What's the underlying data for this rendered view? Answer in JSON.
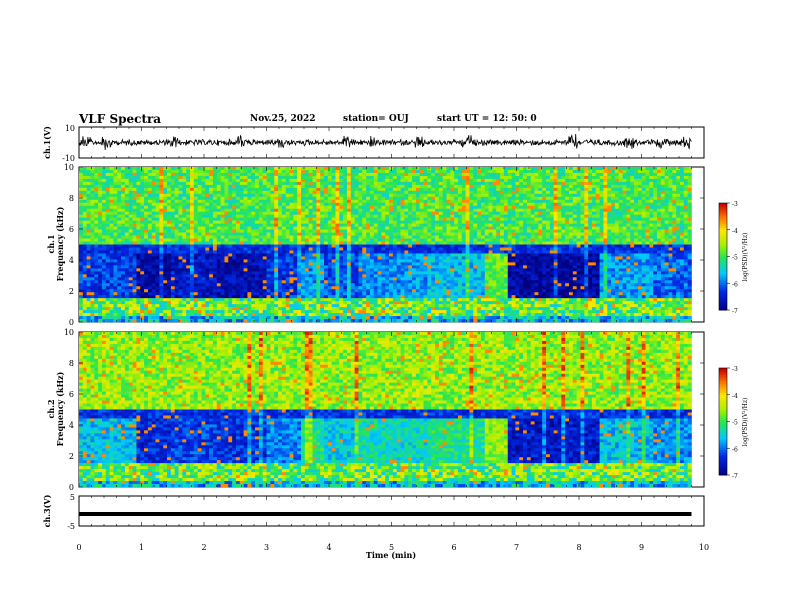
{
  "header": {
    "title": "VLF Spectra",
    "date": "Nov.25, 2022",
    "station": "station= OUJ",
    "start": "start  UT =   12: 50: 0"
  },
  "chart_data": [
    {
      "type": "line",
      "title": "",
      "ylabel": "ch.1(V)",
      "ylim": [
        -10,
        10
      ],
      "yticks": [
        "10",
        "-10"
      ],
      "x_units": "min",
      "xlim": [
        0,
        10
      ],
      "note": "dense waveform trace",
      "series": [
        {
          "color": "#000000"
        }
      ]
    },
    {
      "type": "heatmap",
      "ylabel_lines": [
        "ch.1",
        "Frequency  (kHz)"
      ],
      "ylim": [
        0,
        10
      ],
      "yticks": [
        "0",
        "2",
        "4",
        "6",
        "8",
        "10"
      ],
      "xlim": [
        0,
        9.8
      ],
      "colorbar": {
        "label": "log(PSD)(V²/Hz)",
        "range": [
          -7,
          -3
        ],
        "ticks": [
          "-3",
          "-4",
          "-5",
          "-6",
          "-7"
        ]
      },
      "segments_min": [
        0,
        0.9,
        1.5,
        2.2,
        3.0,
        3.55,
        3.9,
        4.5,
        5.0,
        5.6,
        6.5,
        6.85,
        8.3,
        9.2,
        9.8
      ]
    },
    {
      "type": "heatmap",
      "ylabel_lines": [
        "ch.2",
        "Frequency  (kHz)"
      ],
      "ylim": [
        0,
        10
      ],
      "yticks": [
        "0",
        "2",
        "4",
        "6",
        "8",
        "10"
      ],
      "xlim": [
        0,
        9.8
      ],
      "colorbar": {
        "label": "log(PSD)(V²/Hz)",
        "range": [
          -7,
          -3
        ],
        "ticks": [
          "-3",
          "-4",
          "-5",
          "-6",
          "-7"
        ]
      },
      "segments_min": [
        0,
        0.9,
        1.5,
        2.2,
        3.0,
        3.55,
        3.9,
        4.5,
        5.0,
        5.6,
        6.5,
        6.85,
        8.3,
        9.2,
        9.8
      ]
    },
    {
      "type": "line",
      "ylabel": "ch.3(V)",
      "ylim": [
        -5,
        5
      ],
      "yticks": [
        "5",
        "-5"
      ],
      "xlim": [
        0,
        10
      ],
      "note": "near-constant trace",
      "series": [
        {
          "values_approx": -1.0
        }
      ]
    }
  ],
  "xaxis": {
    "label": "Time  (min)",
    "ticks": [
      "0",
      "1",
      "2",
      "3",
      "4",
      "5",
      "6",
      "7",
      "8",
      "9",
      "10"
    ]
  }
}
